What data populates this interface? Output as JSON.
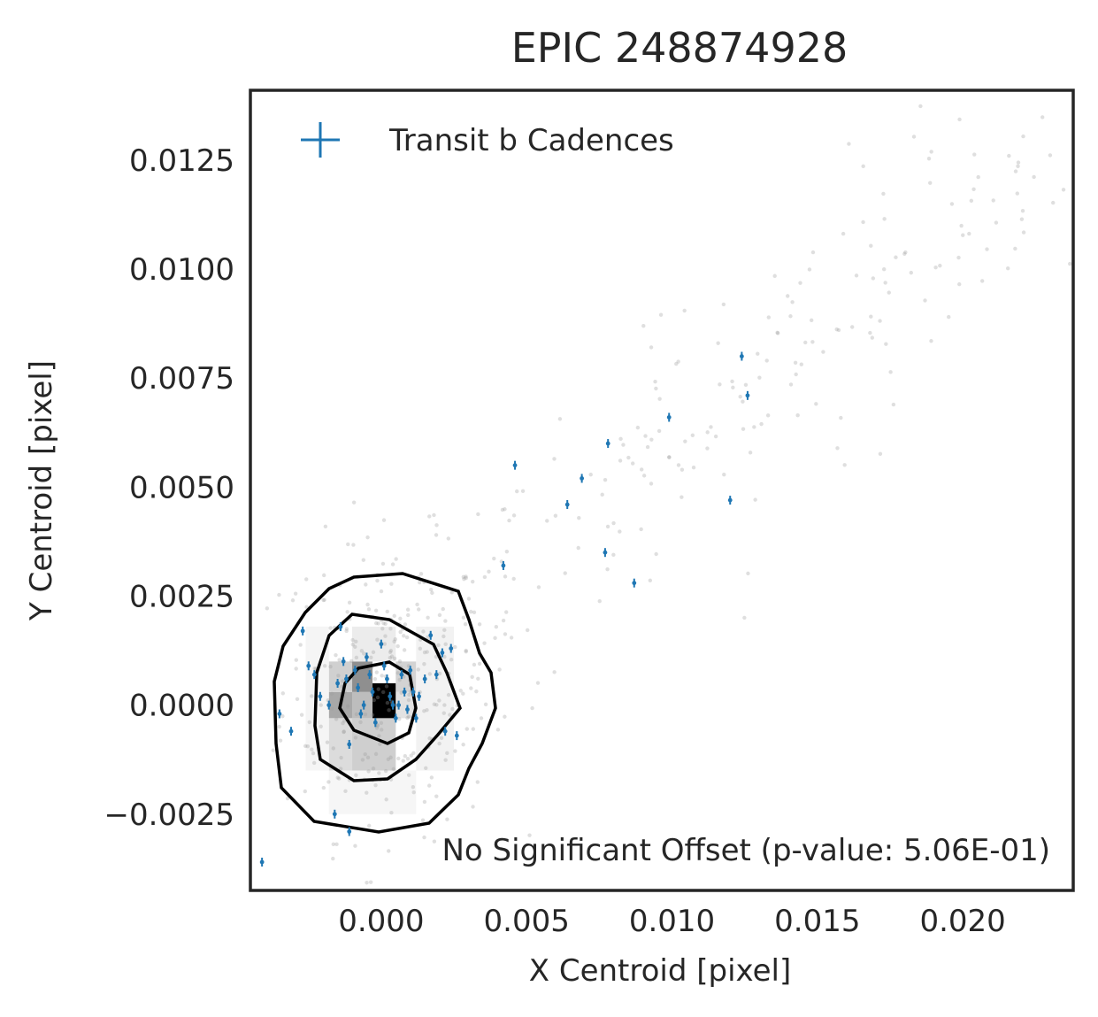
{
  "chart_data": {
    "type": "scatter",
    "title": "EPIC 248874928",
    "xlabel": "X Centroid [pixel]",
    "ylabel": "Y Centroid [pixel]",
    "xlim": [
      -0.0045,
      0.0238
    ],
    "ylim": [
      -0.00425,
      0.0141
    ],
    "xticks": [
      0.0,
      0.005,
      0.01,
      0.015,
      0.02
    ],
    "xtick_labels": [
      "0.000",
      "0.005",
      "0.010",
      "0.015",
      "0.020"
    ],
    "yticks": [
      -0.0025,
      0.0,
      0.0025,
      0.005,
      0.0075,
      0.01,
      0.0125
    ],
    "ytick_labels": [
      "−0.0025",
      "0.0000",
      "0.0025",
      "0.0050",
      "0.0075",
      "0.0100",
      "0.0125"
    ],
    "grid": false,
    "legend": {
      "position": "top-left",
      "entries": [
        "Transit b Cadences"
      ]
    },
    "annotation": "No Significant Offset (p-value: 5.06E-01)",
    "colors": {
      "transit": "#1f77b4",
      "background_points": "#9a9a9a",
      "contours": "#000000",
      "axes": "#262626"
    },
    "series": [
      {
        "name": "Transit b Cadences",
        "x": [
          -0.0041,
          -0.0035,
          -0.0031,
          -0.0027,
          -0.0025,
          -0.0023,
          -0.0021,
          -0.0018,
          -0.0015,
          -0.0014,
          -0.0013,
          -0.0012,
          -0.0011,
          -0.0009,
          -0.0008,
          -0.0007,
          -0.0006,
          -0.0005,
          -0.0004,
          -0.0003,
          -0.0002,
          0.0,
          0.0001,
          0.0002,
          0.0003,
          0.0004,
          0.0005,
          0.0006,
          0.0007,
          0.0008,
          0.0009,
          0.001,
          0.0011,
          0.0012,
          0.0013,
          0.0015,
          0.0017,
          0.0019,
          0.0021,
          0.0022,
          0.0024,
          0.0026,
          0.0042,
          0.0046,
          0.0064,
          0.0069,
          0.0077,
          0.0078,
          0.0087,
          0.0099,
          0.012,
          0.0124,
          0.0126,
          -0.0016,
          -0.0011
        ],
        "y": [
          -0.0036,
          -0.0002,
          -0.0006,
          0.0017,
          0.0009,
          0.0007,
          0.0002,
          0.0,
          0.0005,
          0.0018,
          0.001,
          0.0006,
          -0.0009,
          0.0008,
          0.0004,
          -0.0002,
          0.0,
          0.0011,
          0.0007,
          0.0003,
          -0.0004,
          0.0014,
          0.0009,
          0.0006,
          0.0002,
          0.0,
          -0.0003,
          0.0,
          0.0007,
          0.0003,
          -0.0001,
          0.0008,
          0.0003,
          -0.0003,
          0.0002,
          0.0006,
          0.0016,
          0.0007,
          0.0012,
          -0.0006,
          0.0013,
          -0.0007,
          0.0032,
          0.0055,
          0.0046,
          0.0052,
          0.0035,
          0.006,
          0.0028,
          0.0066,
          0.0047,
          0.008,
          0.0071,
          -0.0025,
          -0.0029
        ]
      }
    ]
  }
}
